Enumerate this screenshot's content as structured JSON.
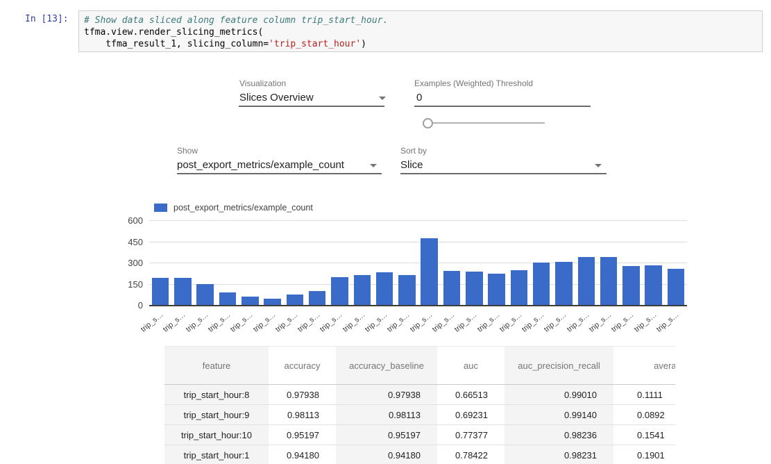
{
  "notebook": {
    "prompt": "In [13]:",
    "code": {
      "comment": "# Show data sliced along feature column trip_start_hour.",
      "line2": "tfma.view.render_slicing_metrics(",
      "line3_pre": "    tfma_result_1, slicing_column=",
      "line3_string": "'trip_start_hour'",
      "line3_post": ")"
    }
  },
  "controls": {
    "visualization_label": "Visualization",
    "visualization_value": "Slices Overview",
    "threshold_label": "Examples (Weighted) Threshold",
    "threshold_value": "0",
    "show_label": "Show",
    "show_value": "post_export_metrics/example_count",
    "sort_label": "Sort by",
    "sort_value": "Slice"
  },
  "chart_data": {
    "type": "bar",
    "title": "",
    "legend": "post_export_metrics/example_count",
    "series_color": "#3b6bc9",
    "xlabel": "",
    "ylabel": "",
    "ylim": [
      0,
      600
    ],
    "yticks": [
      600,
      450,
      300,
      150,
      0
    ],
    "grid": true,
    "legend_position": "top-left",
    "categories": [
      "trip_s…",
      "trip_s…",
      "trip_s…",
      "trip_s…",
      "trip_s…",
      "trip_s…",
      "trip_s…",
      "trip_s…",
      "trip_s…",
      "trip_s…",
      "trip_s…",
      "trip_s…",
      "trip_s…",
      "trip_s…",
      "trip_s…",
      "trip_s…",
      "trip_s…",
      "trip_s…",
      "trip_s…",
      "trip_s…",
      "trip_s…",
      "trip_s…",
      "trip_s…",
      "trip_s…"
    ],
    "values": [
      190,
      190,
      150,
      90,
      58,
      45,
      72,
      97,
      195,
      212,
      232,
      213,
      470,
      242,
      235,
      220,
      247,
      300,
      305,
      340,
      340,
      277,
      283,
      258
    ]
  },
  "table": {
    "headers": [
      "feature",
      "accuracy",
      "accuracy_baseline",
      "auc",
      "auc_precision_recall",
      "average_los"
    ],
    "rows": [
      [
        "trip_start_hour:8",
        "0.97938",
        "0.97938",
        "0.66513",
        "0.99010",
        "0.1111"
      ],
      [
        "trip_start_hour:9",
        "0.98113",
        "0.98113",
        "0.69231",
        "0.99140",
        "0.0892"
      ],
      [
        "trip_start_hour:10",
        "0.95197",
        "0.95197",
        "0.77377",
        "0.98236",
        "0.1541"
      ],
      [
        "trip_start_hour:1",
        "0.94180",
        "0.94180",
        "0.78422",
        "0.98231",
        "0.1901"
      ]
    ]
  }
}
